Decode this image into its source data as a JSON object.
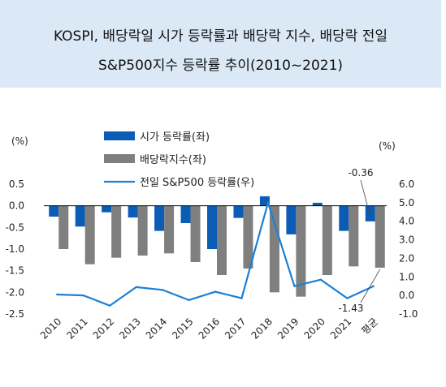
{
  "header": {
    "title_line1": "KOSPI, 배당락일 시가 등락률과 배당락 지수, 배당락 전일",
    "title_line2": "S&P500지수 등락률 추이(2010~2021)"
  },
  "chart_data": {
    "type": "bar",
    "categories": [
      "2010",
      "2011",
      "2012",
      "2013",
      "2014",
      "2015",
      "2016",
      "2017",
      "2018",
      "2019",
      "2020",
      "2021",
      "평균"
    ],
    "series": [
      {
        "name": "시가 등락률(좌)",
        "type": "bar",
        "axis": "left",
        "color": "#0a5cb5",
        "values": [
          -0.25,
          -0.48,
          -0.15,
          -0.27,
          -0.58,
          -0.4,
          -1.0,
          -0.28,
          0.22,
          -0.66,
          0.07,
          -0.58,
          -0.36
        ]
      },
      {
        "name": "배당락지수(좌)",
        "type": "bar",
        "axis": "left",
        "color": "#7f7f7f",
        "values": [
          -1.0,
          -1.35,
          -1.2,
          -1.15,
          -1.1,
          -1.3,
          -1.6,
          -1.45,
          -2.0,
          -2.1,
          -1.6,
          -1.4,
          -1.43
        ]
      },
      {
        "name": "전일 S&P500 등락률(우)",
        "type": "line",
        "axis": "right",
        "color": "#1d7fd6",
        "values": [
          0.05,
          0.0,
          -0.55,
          0.45,
          0.3,
          -0.25,
          0.2,
          -0.15,
          5.0,
          0.5,
          0.85,
          -0.15,
          0.5
        ]
      }
    ],
    "y_left": {
      "label": "(%)",
      "min": -2.5,
      "max": 0.5,
      "ticks": [
        0.5,
        0.0,
        -0.5,
        -1.0,
        -1.5,
        -2.0,
        -2.5
      ],
      "tick_labels": [
        "0.5",
        "0.0",
        "-0.5",
        "-1.0",
        "-1.5",
        "-2.0",
        "-2.5"
      ]
    },
    "y_right": {
      "label": "(%)",
      "min": -1.0,
      "max": 6.0,
      "ticks": [
        6.0,
        5.0,
        4.0,
        3.0,
        2.0,
        1.0,
        0.0,
        -1.0
      ],
      "tick_labels": [
        "6.0",
        "5.0",
        "4.0",
        "3.0",
        "2.0",
        "1.0",
        "0.0",
        "-1.0"
      ]
    },
    "annotations": [
      {
        "text": "-0.36",
        "category": "평균",
        "series": 0
      },
      {
        "text": "-1.43",
        "category": "평균",
        "series": 1
      }
    ],
    "legend_position": "top-center",
    "grid": false
  }
}
